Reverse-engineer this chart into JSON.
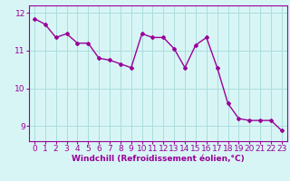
{
  "x": [
    0,
    1,
    2,
    3,
    4,
    5,
    6,
    7,
    8,
    9,
    10,
    11,
    12,
    13,
    14,
    15,
    16,
    17,
    18,
    19,
    20,
    21,
    22,
    23
  ],
  "y": [
    11.85,
    11.7,
    11.35,
    11.45,
    11.2,
    11.2,
    10.8,
    10.75,
    10.65,
    10.55,
    11.45,
    11.35,
    11.35,
    11.05,
    10.55,
    11.15,
    11.35,
    10.55,
    9.6,
    9.2,
    9.15,
    9.15,
    9.15,
    8.88
  ],
  "line_color": "#990099",
  "marker": "D",
  "markersize": 2,
  "linewidth": 1.0,
  "background_color": "#d8f5f5",
  "grid_color": "#aadddd",
  "xlabel": "Windchill (Refroidissement éolien,°C)",
  "xlabel_color": "#990099",
  "xlabel_fontsize": 6.5,
  "xtick_labels": [
    "0",
    "1",
    "2",
    "3",
    "4",
    "5",
    "6",
    "7",
    "8",
    "9",
    "10",
    "11",
    "12",
    "13",
    "14",
    "15",
    "16",
    "17",
    "18",
    "19",
    "20",
    "21",
    "22",
    "23"
  ],
  "ytick_labels": [
    "9",
    "10",
    "11",
    "12"
  ],
  "yticks": [
    9,
    10,
    11,
    12
  ],
  "ylim": [
    8.6,
    12.2
  ],
  "xlim": [
    -0.5,
    23.5
  ],
  "tick_color": "#990099",
  "tick_fontsize": 6.5,
  "axis_color": "#990099"
}
